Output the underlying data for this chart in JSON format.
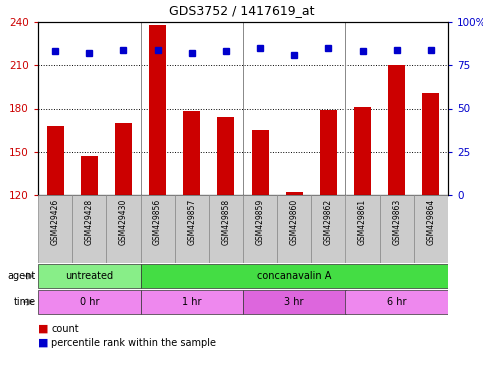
{
  "title": "GDS3752 / 1417619_at",
  "samples": [
    "GSM429426",
    "GSM429428",
    "GSM429430",
    "GSM429856",
    "GSM429857",
    "GSM429858",
    "GSM429859",
    "GSM429860",
    "GSM429862",
    "GSM429861",
    "GSM429863",
    "GSM429864"
  ],
  "bar_values": [
    168,
    147,
    170,
    238,
    178,
    174,
    165,
    122,
    179,
    181,
    210,
    191
  ],
  "percentile_values": [
    83,
    82,
    84,
    84,
    82,
    83,
    85,
    81,
    85,
    83,
    84,
    84
  ],
  "bar_color": "#cc0000",
  "dot_color": "#0000cc",
  "ylim_left": [
    120,
    240
  ],
  "ylim_right": [
    0,
    100
  ],
  "yticks_left": [
    120,
    150,
    180,
    210,
    240
  ],
  "yticks_right": [
    0,
    25,
    50,
    75,
    100
  ],
  "agent_labels": [
    {
      "label": "untreated",
      "start": 0,
      "end": 3,
      "color": "#88ee88"
    },
    {
      "label": "concanavalin A",
      "start": 3,
      "end": 12,
      "color": "#44dd44"
    }
  ],
  "time_labels": [
    {
      "label": "0 hr",
      "start": 0,
      "end": 3,
      "color": "#ee88ee"
    },
    {
      "label": "1 hr",
      "start": 3,
      "end": 6,
      "color": "#ee88ee"
    },
    {
      "label": "3 hr",
      "start": 6,
      "end": 9,
      "color": "#dd66dd"
    },
    {
      "label": "6 hr",
      "start": 9,
      "end": 12,
      "color": "#ee88ee"
    }
  ],
  "legend_count_color": "#cc0000",
  "legend_dot_color": "#0000cc",
  "bg_color": "#ffffff",
  "plot_bg_color": "#ffffff",
  "tick_label_color_left": "#cc0000",
  "tick_label_color_right": "#0000cc",
  "grid_color": "#000000",
  "xticklabel_bg": "#cccccc",
  "group_separators": [
    2.5,
    5.5,
    8.5
  ],
  "bar_width": 0.5
}
